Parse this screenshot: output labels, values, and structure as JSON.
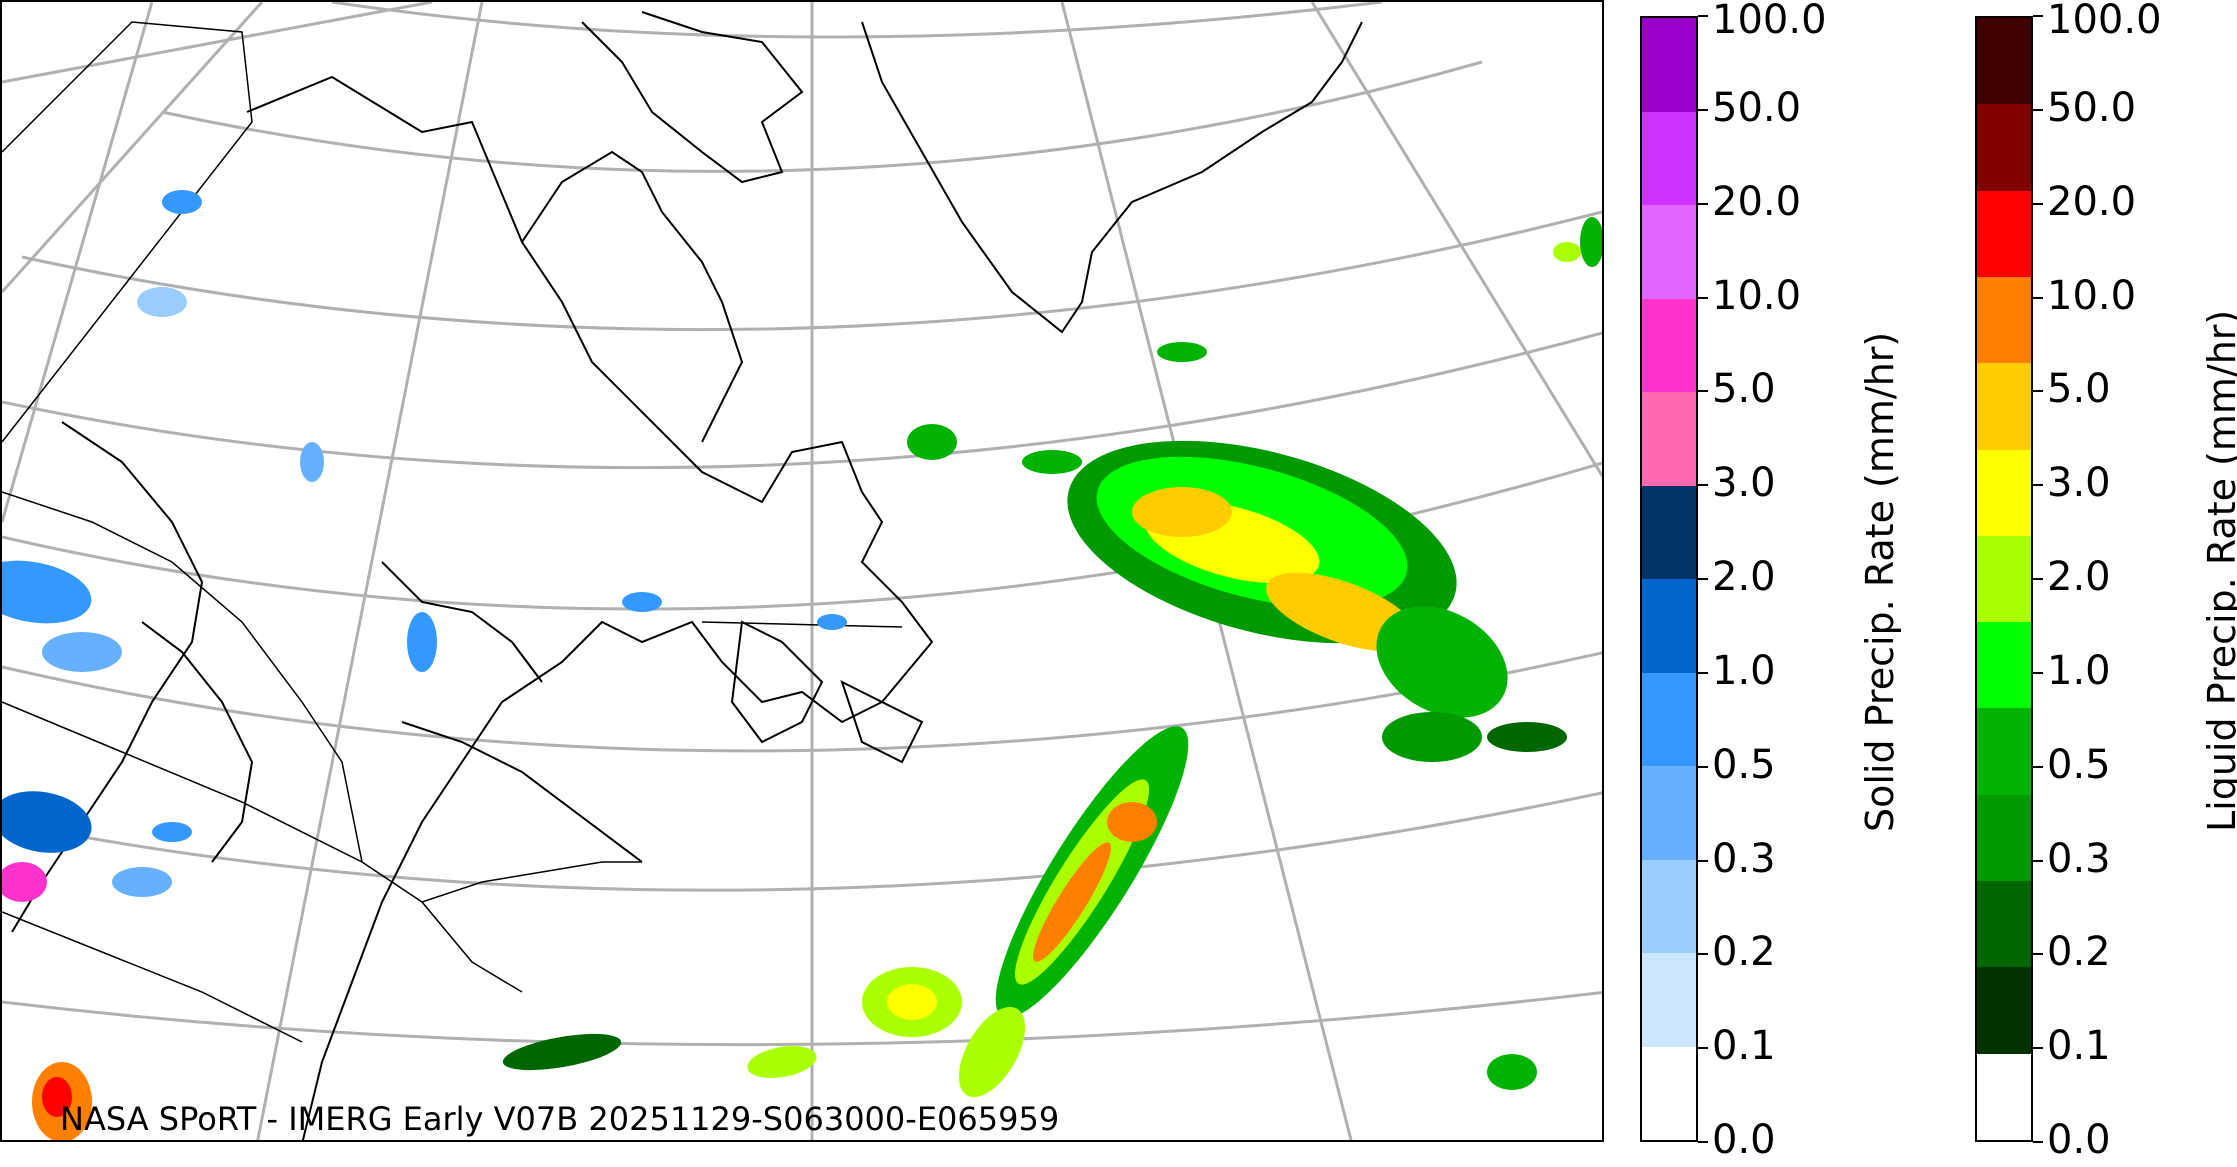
{
  "map": {
    "credit": "NASA SPoRT - IMERG Early V07B 20251129-S063000-E065959",
    "grid_color": "#b0b0b0",
    "coastline_color": "#000000"
  },
  "legend_solid": {
    "label": "Solid Precip. Rate (mm/hr)",
    "ticks": [
      "0.0",
      "0.1",
      "0.2",
      "0.3",
      "0.5",
      "1.0",
      "2.0",
      "3.0",
      "5.0",
      "10.0",
      "20.0",
      "50.0",
      "100.0"
    ],
    "colors": [
      "#ffffff",
      "#cce6ff",
      "#99ccff",
      "#66b0ff",
      "#3399ff",
      "#0066cc",
      "#003366",
      "#ff69b4",
      "#ff33cc",
      "#e066ff",
      "#cc33ff",
      "#9900cc"
    ]
  },
  "legend_liquid": {
    "label": "Liquid Precip. Rate (mm/hr)",
    "ticks": [
      "0.0",
      "0.1",
      "0.2",
      "0.3",
      "0.5",
      "1.0",
      "2.0",
      "3.0",
      "5.0",
      "10.0",
      "20.0",
      "50.0",
      "100.0"
    ],
    "colors": [
      "#ffffff",
      "#003300",
      "#006600",
      "#009900",
      "#00b300",
      "#00ff00",
      "#aaff00",
      "#ffff00",
      "#ffcc00",
      "#ff8000",
      "#ff0000",
      "#800000",
      "#400000"
    ]
  }
}
